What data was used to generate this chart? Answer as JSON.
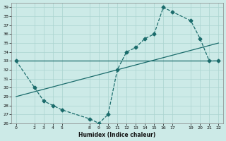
{
  "xlabel": "Humidex (Indice chaleur)",
  "bg_color": "#cceae7",
  "grid_color": "#aad4d0",
  "line_color": "#1a6b6b",
  "line1": {
    "x": [
      0,
      2,
      3,
      4,
      5,
      8,
      9,
      10,
      11,
      12,
      13,
      14,
      15,
      16,
      17,
      19,
      20,
      21,
      22
    ],
    "y": [
      33,
      30,
      28.5,
      28,
      27.5,
      26.5,
      26,
      27,
      32,
      34,
      34.5,
      35.5,
      36,
      39,
      38.5,
      37.5,
      35.5,
      33,
      33
    ],
    "style": "--",
    "marker": "D",
    "markersize": 2.5
  },
  "line2": {
    "x": [
      0,
      22
    ],
    "y": [
      33,
      33
    ],
    "style": "-"
  },
  "line3": {
    "x": [
      0,
      22
    ],
    "y": [
      29,
      35
    ],
    "style": "-"
  },
  "xlim": [
    -0.5,
    22.5
  ],
  "ylim": [
    26,
    39.5
  ],
  "xticks": [
    0,
    2,
    3,
    4,
    5,
    8,
    9,
    10,
    11,
    12,
    13,
    14,
    15,
    16,
    17,
    19,
    20,
    21,
    22
  ],
  "yticks": [
    26,
    27,
    28,
    29,
    30,
    31,
    32,
    33,
    34,
    35,
    36,
    37,
    38,
    39
  ]
}
